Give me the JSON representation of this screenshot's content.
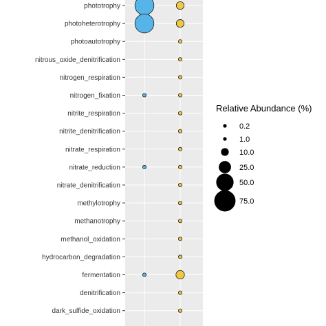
{
  "chart_data": {
    "type": "scatter",
    "title": "",
    "xlabel": "",
    "ylabel": "",
    "grid": true,
    "legend_placement": "right",
    "categories": [
      "phototrophy",
      "photoheterotrophy",
      "photoautotrophy",
      "nitrous_oxide_denitrification",
      "nitrogen_respiration",
      "nitrogen_fixation",
      "nitrite_respiration",
      "nitrite_denitrification",
      "nitrate_respiration",
      "nitrate_reduction",
      "nitrate_denitrification",
      "methylotrophy",
      "methanotrophy",
      "methanol_oxidation",
      "hydrocarbon_degradation",
      "fermentation",
      "denitrification",
      "dark_sulfide_oxidation"
    ],
    "series": [
      {
        "color": "#56B4E9",
        "values": [
          60,
          60,
          0,
          0,
          0,
          1.0,
          0,
          0,
          0,
          1.0,
          0,
          0,
          0,
          0,
          0,
          1.0,
          0,
          0
        ]
      },
      {
        "color": "#F0C845",
        "values": [
          10,
          10,
          0.2,
          0.2,
          0.5,
          1.5,
          0.2,
          0.2,
          1.0,
          1.5,
          0.2,
          0.5,
          0.5,
          0.5,
          0.5,
          12,
          0.2,
          2.0
        ]
      }
    ],
    "size_legend": {
      "title": "Relative Abundance (%)",
      "breaks": [
        0.2,
        1.0,
        10.0,
        25.0,
        50.0,
        75.0
      ],
      "labels": [
        "0.2",
        "1.0",
        "10.0",
        "25.0",
        "50.0",
        "75.0"
      ]
    },
    "panel_color": "#EBEBEB",
    "grid_color": "#FFFFFF"
  }
}
